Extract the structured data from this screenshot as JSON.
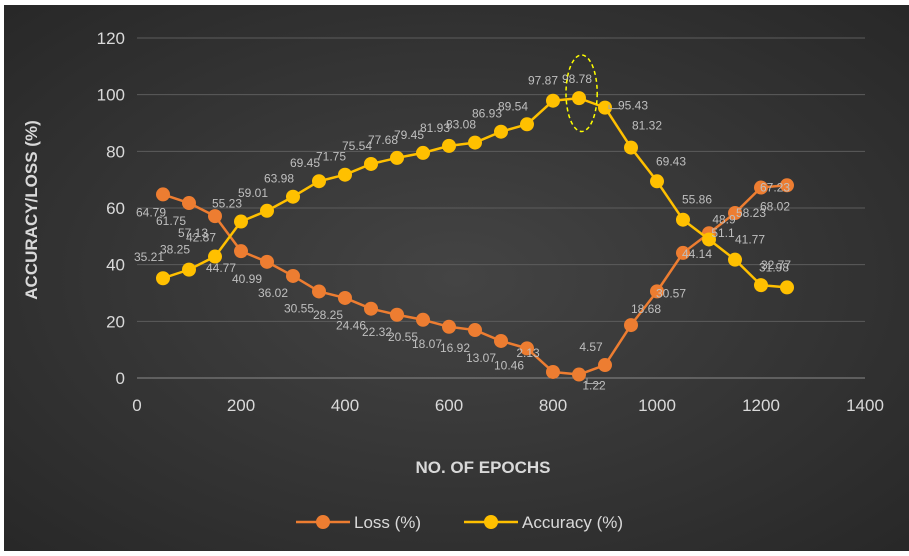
{
  "chart_data": {
    "type": "line",
    "title": "",
    "xlabel": "NO. OF EPOCHS",
    "ylabel": "ACCURACY/LOSS (%)",
    "xlim": [
      0,
      1400
    ],
    "ylim": [
      0,
      120
    ],
    "xticks": [
      0,
      200,
      400,
      600,
      800,
      1000,
      1200,
      1400
    ],
    "yticks": [
      0,
      20,
      40,
      60,
      80,
      100,
      120
    ],
    "grid": true,
    "legend_position": "bottom",
    "background": "#383838",
    "series": [
      {
        "name": "Loss (%)",
        "color": "#ED7D31",
        "x": [
          50,
          100,
          150,
          200,
          250,
          300,
          350,
          400,
          450,
          500,
          550,
          600,
          650,
          700,
          750,
          800,
          850,
          900,
          950,
          1000,
          1050,
          1100,
          1150,
          1200,
          1250
        ],
        "values": [
          64.79,
          61.75,
          57.13,
          44.77,
          40.99,
          36.02,
          30.55,
          28.25,
          24.46,
          22.32,
          20.55,
          18.07,
          16.92,
          13.07,
          10.46,
          2.13,
          1.22,
          4.57,
          18.68,
          30.57,
          44.14,
          51.1,
          58.23,
          67.23,
          68.02
        ],
        "labels": [
          "64.79",
          "61.75",
          "57.13",
          "44.77",
          "40.99",
          "36.02",
          "30.55",
          "28.25",
          "24.46",
          "22.32",
          "20.55",
          "18.07",
          "16.92",
          "13.07",
          "10.46",
          "2.13",
          "1.22",
          "4.57",
          "18.68",
          "30.57",
          "44.14",
          "51.1",
          "58.23",
          "67.23",
          "68.02"
        ]
      },
      {
        "name": "Accuracy (%)",
        "color": "#FFC000",
        "x": [
          50,
          100,
          150,
          200,
          250,
          300,
          350,
          400,
          450,
          500,
          550,
          600,
          650,
          700,
          750,
          800,
          850,
          900,
          950,
          1000,
          1050,
          1100,
          1150,
          1200,
          1250
        ],
        "values": [
          35.21,
          38.25,
          42.87,
          55.23,
          59.01,
          63.98,
          69.45,
          71.75,
          75.54,
          77.68,
          79.45,
          81.93,
          83.08,
          86.93,
          89.54,
          97.87,
          98.78,
          95.43,
          81.32,
          69.43,
          55.86,
          48.9,
          41.77,
          32.77,
          31.98
        ],
        "labels": [
          "35.21",
          "38.25",
          "42.87",
          "55.23",
          "59.01",
          "63.98",
          "69.45",
          "71.75",
          "75.54",
          "77.68",
          "79.45",
          "81.93",
          "83.08",
          "86.93",
          "89.54",
          "97.87",
          "98.78",
          "95.43",
          "81.32",
          "69.43",
          "55.86",
          "48.9",
          "41.77",
          "32.77",
          "31.98"
        ]
      }
    ],
    "annotations": [
      {
        "type": "dashed-ellipse",
        "x": 855,
        "y": 100.5,
        "rx_data": 30,
        "ry_data": 13.5,
        "color": "#FFFF00"
      }
    ]
  }
}
